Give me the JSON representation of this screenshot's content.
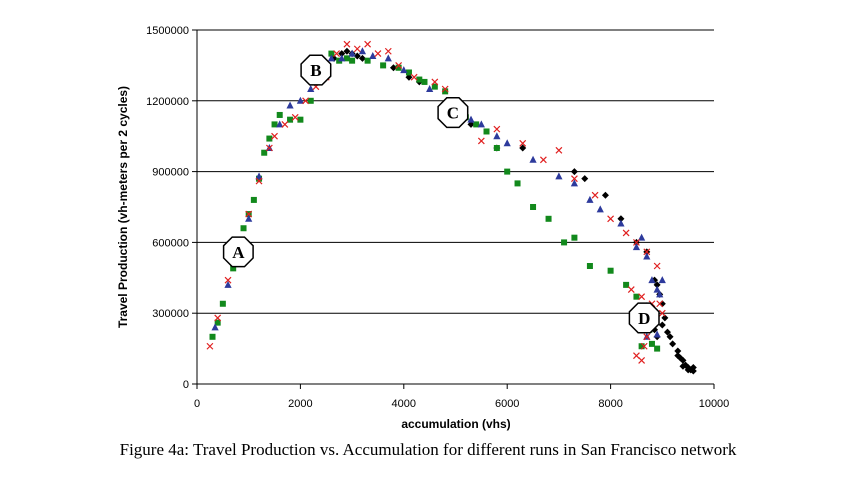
{
  "caption": "Figure 4a: Travel Production vs. Accumulation for different runs in San Francisco network",
  "chart_data": {
    "type": "scatter",
    "xlabel": "accumulation (vhs)",
    "ylabel": "Travel Production (vh-meters per 2 cycles)",
    "xlim": [
      0,
      10000
    ],
    "ylim": [
      0,
      1500000
    ],
    "x_ticks": [
      "0",
      "2000",
      "4000",
      "6000",
      "8000",
      "10000"
    ],
    "y_ticks": [
      "0",
      "300000",
      "600000",
      "900000",
      "1200000",
      "1500000"
    ],
    "grid": "horizontal",
    "legend": "none",
    "colors": {
      "black": "#000000",
      "green": "#12891c",
      "blue": "#2d3a9c",
      "red": "#e02020"
    },
    "annotations": [
      {
        "label": "A",
        "x": 800,
        "y": 560000
      },
      {
        "label": "B",
        "x": 2300,
        "y": 1330000
      },
      {
        "label": "C",
        "x": 4950,
        "y": 1150000
      },
      {
        "label": "D",
        "x": 8650,
        "y": 280000
      }
    ],
    "series": [
      {
        "marker": "diamond",
        "color": "#000000",
        "points": [
          [
            2650,
            1380000
          ],
          [
            2800,
            1400000
          ],
          [
            2900,
            1410000
          ],
          [
            3000,
            1400000
          ],
          [
            3100,
            1390000
          ],
          [
            3200,
            1380000
          ],
          [
            3800,
            1340000
          ],
          [
            4100,
            1300000
          ],
          [
            4300,
            1280000
          ],
          [
            5300,
            1100000
          ],
          [
            5800,
            1000000
          ],
          [
            6300,
            1000000
          ],
          [
            7300,
            900000
          ],
          [
            7500,
            870000
          ],
          [
            7900,
            800000
          ],
          [
            8200,
            700000
          ],
          [
            8500,
            600000
          ],
          [
            8700,
            560000
          ],
          [
            8850,
            440000
          ],
          [
            8900,
            420000
          ],
          [
            8950,
            380000
          ],
          [
            9000,
            340000
          ],
          [
            9050,
            280000
          ],
          [
            9100,
            220000
          ],
          [
            9150,
            200000
          ],
          [
            9200,
            170000
          ],
          [
            9300,
            140000
          ],
          [
            9350,
            110000
          ],
          [
            9400,
            100000
          ],
          [
            9450,
            80000
          ],
          [
            9500,
            70000
          ],
          [
            9550,
            60000
          ],
          [
            9600,
            55000
          ],
          [
            9600,
            70000
          ],
          [
            9500,
            60000
          ],
          [
            9400,
            75000
          ],
          [
            9300,
            120000
          ],
          [
            8800,
            260000
          ],
          [
            8850,
            230000
          ],
          [
            8900,
            200000
          ],
          [
            9000,
            250000
          ]
        ]
      },
      {
        "marker": "square",
        "color": "#12891c",
        "points": [
          [
            300,
            200000
          ],
          [
            400,
            260000
          ],
          [
            500,
            340000
          ],
          [
            700,
            490000
          ],
          [
            900,
            660000
          ],
          [
            1000,
            720000
          ],
          [
            1100,
            780000
          ],
          [
            1200,
            870000
          ],
          [
            1300,
            980000
          ],
          [
            1400,
            1040000
          ],
          [
            1500,
            1100000
          ],
          [
            1600,
            1140000
          ],
          [
            1800,
            1120000
          ],
          [
            2000,
            1120000
          ],
          [
            2200,
            1200000
          ],
          [
            2600,
            1400000
          ],
          [
            2750,
            1370000
          ],
          [
            2900,
            1380000
          ],
          [
            3000,
            1370000
          ],
          [
            3300,
            1370000
          ],
          [
            3600,
            1350000
          ],
          [
            3900,
            1340000
          ],
          [
            4100,
            1320000
          ],
          [
            4300,
            1290000
          ],
          [
            4400,
            1280000
          ],
          [
            4600,
            1260000
          ],
          [
            4800,
            1240000
          ],
          [
            5000,
            1200000
          ],
          [
            5200,
            1130000
          ],
          [
            5400,
            1100000
          ],
          [
            5600,
            1070000
          ],
          [
            5800,
            1000000
          ],
          [
            6000,
            900000
          ],
          [
            6200,
            850000
          ],
          [
            6500,
            750000
          ],
          [
            6800,
            700000
          ],
          [
            7100,
            600000
          ],
          [
            7300,
            620000
          ],
          [
            7600,
            500000
          ],
          [
            8000,
            480000
          ],
          [
            8300,
            420000
          ],
          [
            8500,
            370000
          ],
          [
            8650,
            290000
          ],
          [
            8750,
            230000
          ],
          [
            8800,
            170000
          ],
          [
            8900,
            150000
          ],
          [
            8600,
            160000
          ]
        ]
      },
      {
        "marker": "triangle",
        "color": "#2d3a9c",
        "points": [
          [
            350,
            240000
          ],
          [
            600,
            420000
          ],
          [
            800,
            560000
          ],
          [
            1000,
            700000
          ],
          [
            1200,
            880000
          ],
          [
            1400,
            1000000
          ],
          [
            1600,
            1100000
          ],
          [
            1800,
            1180000
          ],
          [
            2000,
            1200000
          ],
          [
            2200,
            1250000
          ],
          [
            2400,
            1300000
          ],
          [
            2600,
            1380000
          ],
          [
            2800,
            1380000
          ],
          [
            3000,
            1400000
          ],
          [
            3200,
            1410000
          ],
          [
            3400,
            1390000
          ],
          [
            3700,
            1380000
          ],
          [
            4000,
            1330000
          ],
          [
            4500,
            1250000
          ],
          [
            5000,
            1150000
          ],
          [
            5300,
            1120000
          ],
          [
            5500,
            1100000
          ],
          [
            5800,
            1050000
          ],
          [
            6000,
            1020000
          ],
          [
            6500,
            950000
          ],
          [
            7000,
            880000
          ],
          [
            7300,
            850000
          ],
          [
            7600,
            780000
          ],
          [
            7800,
            740000
          ],
          [
            8200,
            680000
          ],
          [
            8600,
            620000
          ],
          [
            8500,
            580000
          ],
          [
            8700,
            540000
          ],
          [
            8800,
            440000
          ],
          [
            8900,
            400000
          ],
          [
            9000,
            440000
          ],
          [
            8950,
            380000
          ],
          [
            8700,
            330000
          ],
          [
            8800,
            280000
          ],
          [
            8600,
            260000
          ],
          [
            8900,
            210000
          ],
          [
            8700,
            200000
          ]
        ]
      },
      {
        "marker": "x",
        "color": "#e02020",
        "points": [
          [
            250,
            160000
          ],
          [
            400,
            280000
          ],
          [
            600,
            440000
          ],
          [
            800,
            560000
          ],
          [
            1000,
            720000
          ],
          [
            1200,
            860000
          ],
          [
            1400,
            1000000
          ],
          [
            1500,
            1050000
          ],
          [
            1700,
            1100000
          ],
          [
            1900,
            1130000
          ],
          [
            2100,
            1200000
          ],
          [
            2300,
            1260000
          ],
          [
            2500,
            1300000
          ],
          [
            2700,
            1400000
          ],
          [
            2900,
            1440000
          ],
          [
            3100,
            1420000
          ],
          [
            3300,
            1440000
          ],
          [
            3500,
            1400000
          ],
          [
            3700,
            1410000
          ],
          [
            3900,
            1350000
          ],
          [
            4200,
            1300000
          ],
          [
            4600,
            1280000
          ],
          [
            4800,
            1250000
          ],
          [
            5000,
            1200000
          ],
          [
            5500,
            1030000
          ],
          [
            5800,
            1080000
          ],
          [
            6300,
            1020000
          ],
          [
            6700,
            950000
          ],
          [
            7000,
            990000
          ],
          [
            7300,
            870000
          ],
          [
            7700,
            800000
          ],
          [
            8000,
            700000
          ],
          [
            8300,
            640000
          ],
          [
            8500,
            600000
          ],
          [
            8700,
            560000
          ],
          [
            8900,
            500000
          ],
          [
            8400,
            400000
          ],
          [
            8600,
            370000
          ],
          [
            8800,
            340000
          ],
          [
            8500,
            300000
          ],
          [
            8600,
            250000
          ],
          [
            8700,
            200000
          ],
          [
            8650,
            160000
          ],
          [
            8500,
            120000
          ],
          [
            8600,
            100000
          ],
          [
            9000,
            300000
          ],
          [
            8950,
            340000
          ]
        ]
      }
    ]
  }
}
